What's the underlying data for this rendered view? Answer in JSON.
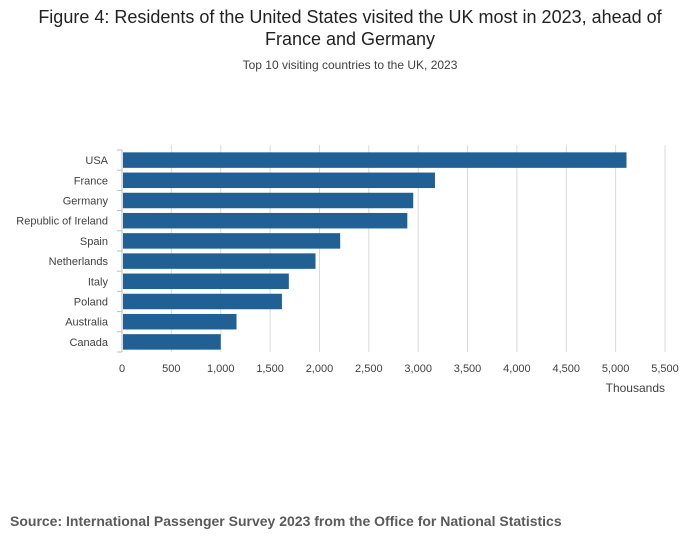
{
  "chart_data": {
    "type": "bar",
    "orientation": "horizontal",
    "title": "Figure 4: Residents of the United States visited the UK most in 2023, ahead of France and Germany",
    "subtitle": "Top 10 visiting countries to the UK, 2023",
    "categories": [
      "USA",
      "France",
      "Germany",
      "Republic of Ireland",
      "Spain",
      "Netherlands",
      "Italy",
      "Poland",
      "Australia",
      "Canada"
    ],
    "values": [
      5110,
      3170,
      2950,
      2890,
      2210,
      1960,
      1690,
      1620,
      1160,
      1000
    ],
    "xlabel": "Thousands",
    "ylabel": "",
    "xlim": [
      0,
      5500
    ],
    "xticks": [
      0,
      500,
      1000,
      1500,
      2000,
      2500,
      3000,
      3500,
      4000,
      4500,
      5000,
      5500
    ],
    "xtick_labels": [
      "0",
      "500",
      "1,000",
      "1,500",
      "2,000",
      "2,500",
      "3,000",
      "3,500",
      "4,000",
      "4,500",
      "5,000",
      "5,500"
    ],
    "grid": "vertical",
    "bar_color": "#206095",
    "grid_color": "#d9d9d9",
    "axis_color": "#bebebe"
  },
  "source": "Source: International Passenger Survey 2023 from the Office for National Statistics"
}
